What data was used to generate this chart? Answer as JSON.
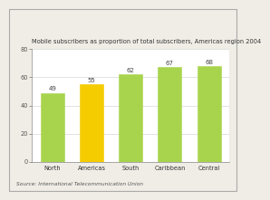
{
  "title": "Mobile subscribers as proportion of total subscribers, Americas region 2004",
  "categories": [
    "North",
    "Americas",
    "South",
    "Caribbean",
    "Central"
  ],
  "values": [
    49,
    55,
    62,
    67,
    68
  ],
  "bar_colors": [
    "#a8d44d",
    "#f5cc00",
    "#a8d44d",
    "#a8d44d",
    "#a8d44d"
  ],
  "bar_edge_colors": [
    "#a8d44d",
    "#f5cc00",
    "#a8d44d",
    "#a8d44d",
    "#a8d44d"
  ],
  "ylim": [
    0,
    80
  ],
  "yticks": [
    0,
    20,
    40,
    60,
    80
  ],
  "source": "Source: International Telecommunication Union",
  "title_fontsize": 4.8,
  "value_fontsize": 5.0,
  "source_fontsize": 4.2,
  "tick_fontsize": 4.8,
  "bg_color": "#ffffff",
  "plot_bg_color": "#ffffff",
  "outer_bg_color": "#f0ede6"
}
